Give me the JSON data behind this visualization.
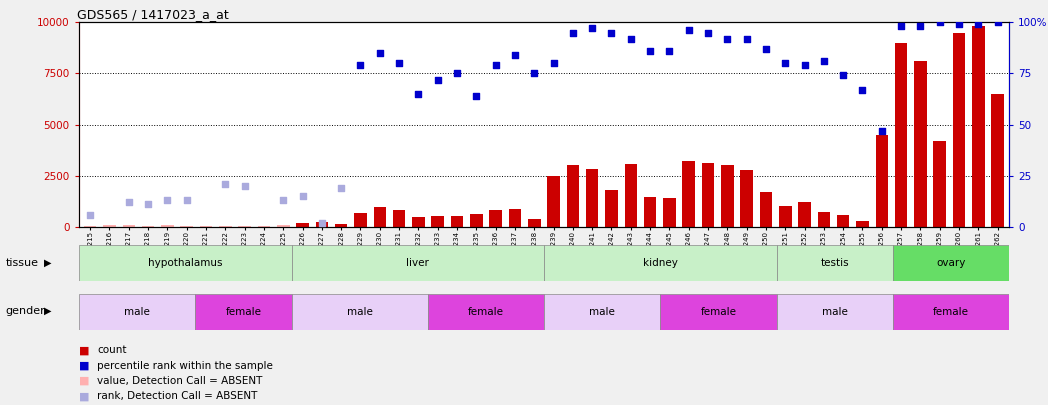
{
  "title": "GDS565 / 1417023_a_at",
  "samples": [
    "GSM19215",
    "GSM19216",
    "GSM19217",
    "GSM19218",
    "GSM19219",
    "GSM19220",
    "GSM19221",
    "GSM19222",
    "GSM19223",
    "GSM19224",
    "GSM19225",
    "GSM19226",
    "GSM19227",
    "GSM19228",
    "GSM19229",
    "GSM19230",
    "GSM19231",
    "GSM19232",
    "GSM19233",
    "GSM19234",
    "GSM19235",
    "GSM19236",
    "GSM19237",
    "GSM19238",
    "GSM19239",
    "GSM19240",
    "GSM19241",
    "GSM19242",
    "GSM19243",
    "GSM19244",
    "GSM19245",
    "GSM19246",
    "GSM19247",
    "GSM19248",
    "GSM19249",
    "GSM19250",
    "GSM19251",
    "GSM19252",
    "GSM19253",
    "GSM19254",
    "GSM19255",
    "GSM19256",
    "GSM19257",
    "GSM19258",
    "GSM19259",
    "GSM19260",
    "GSM19261",
    "GSM19262"
  ],
  "count_values": [
    55,
    65,
    80,
    60,
    75,
    60,
    50,
    58,
    52,
    60,
    65,
    180,
    230,
    130,
    680,
    980,
    820,
    480,
    510,
    540,
    610,
    820,
    860,
    400,
    2500,
    3000,
    2850,
    1800,
    3050,
    1480,
    1420,
    3200,
    3100,
    3000,
    2800,
    1700,
    1000,
    1200,
    700,
    600,
    300,
    4500,
    9000,
    8100,
    4200,
    9500,
    9800,
    6500
  ],
  "percentile_pct": [
    null,
    null,
    null,
    null,
    null,
    null,
    null,
    null,
    null,
    null,
    null,
    null,
    null,
    null,
    79,
    85,
    80,
    65,
    72,
    75,
    64,
    79,
    84,
    75,
    80,
    95,
    97,
    95,
    92,
    86,
    86,
    96,
    95,
    92,
    92,
    87,
    80,
    79,
    81,
    74,
    67,
    47,
    98,
    98,
    100,
    99,
    99,
    100
  ],
  "absent_count_values": [
    55,
    65,
    80,
    60,
    75,
    60,
    50,
    58,
    52,
    60,
    65,
    null,
    null,
    null,
    null,
    null,
    null,
    null,
    null,
    null,
    null,
    null,
    null,
    null,
    null,
    null,
    null,
    null,
    null,
    null,
    null,
    null,
    null,
    null,
    null,
    null,
    null,
    null,
    null,
    null,
    null,
    null,
    null,
    null,
    null,
    null,
    null,
    null
  ],
  "absent_rank_pct": [
    6,
    null,
    12,
    11,
    13,
    13,
    null,
    21,
    20,
    null,
    13,
    15,
    2,
    19,
    null,
    null,
    null,
    null,
    null,
    null,
    null,
    null,
    null,
    null,
    null,
    null,
    null,
    null,
    null,
    null,
    null,
    null,
    null,
    null,
    null,
    null,
    null,
    null,
    null,
    null,
    null,
    null,
    null,
    null,
    null,
    null,
    null,
    null
  ],
  "tissue_groups": [
    {
      "label": "hypothalamus",
      "start": 0,
      "end": 10,
      "color": "#c8f0c8"
    },
    {
      "label": "liver",
      "start": 11,
      "end": 23,
      "color": "#c8f0c8"
    },
    {
      "label": "kidney",
      "start": 24,
      "end": 35,
      "color": "#c8f0c8"
    },
    {
      "label": "testis",
      "start": 36,
      "end": 41,
      "color": "#c8f0c8"
    },
    {
      "label": "ovary",
      "start": 42,
      "end": 47,
      "color": "#66dd66"
    }
  ],
  "gender_groups": [
    {
      "label": "male",
      "start": 0,
      "end": 5
    },
    {
      "label": "female",
      "start": 6,
      "end": 10
    },
    {
      "label": "male",
      "start": 11,
      "end": 17
    },
    {
      "label": "female",
      "start": 18,
      "end": 23
    },
    {
      "label": "male",
      "start": 24,
      "end": 29
    },
    {
      "label": "female",
      "start": 30,
      "end": 35
    },
    {
      "label": "male",
      "start": 36,
      "end": 41
    },
    {
      "label": "female",
      "start": 42,
      "end": 47
    }
  ],
  "male_color": "#e8d0f8",
  "female_color": "#dd44dd",
  "bar_color": "#cc0000",
  "dot_color": "#0000cc",
  "absent_bar_color": "#ffb0b0",
  "absent_rank_color": "#aaaadd",
  "left_axis_color": "#cc0000",
  "right_axis_color": "#0000cc",
  "background_color": "#f0f0f0",
  "plot_bg": "#ffffff"
}
